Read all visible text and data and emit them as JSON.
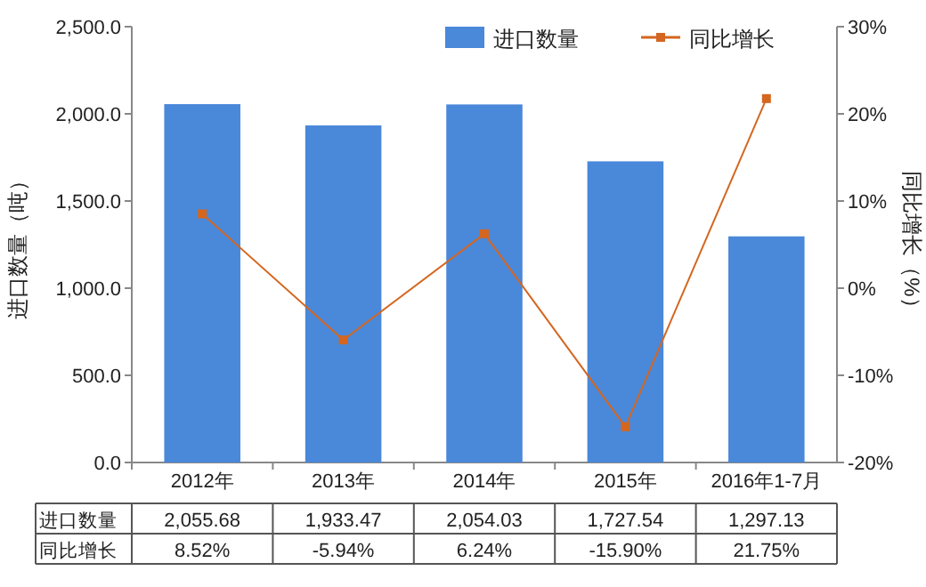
{
  "chart_data": {
    "type": "bar",
    "categories": [
      "2012年",
      "2013年",
      "2014年",
      "2015年",
      "2016年1-7月"
    ],
    "ylabel": "进口数量（吨）",
    "y2label": "同比增长（%）",
    "ylim": [
      0,
      2500
    ],
    "yticks": [
      {
        "value": 0,
        "label": "0.0"
      },
      {
        "value": 500,
        "label": "500.0"
      },
      {
        "value": 1000,
        "label": "1,000.0"
      },
      {
        "value": 1500,
        "label": "1,500.0"
      },
      {
        "value": 2000,
        "label": "2,000.0"
      },
      {
        "value": 2500,
        "label": "2,500.0"
      }
    ],
    "y2lim": [
      -20,
      30
    ],
    "y2ticks": [
      {
        "value": -20,
        "label": "-20%"
      },
      {
        "value": -10,
        "label": "-10%"
      },
      {
        "value": 0,
        "label": "0%"
      },
      {
        "value": 10,
        "label": "10%"
      },
      {
        "value": 20,
        "label": "20%"
      },
      {
        "value": 30,
        "label": "30%"
      }
    ],
    "series": [
      {
        "name": "进口数量",
        "color": "#4a88d9",
        "values": [
          2055.68,
          1933.47,
          2054.03,
          1727.54,
          1297.13
        ],
        "value_labels": [
          "2,055.68",
          "1,933.47",
          "2,054.03",
          "1,727.54",
          "1,297.13"
        ]
      },
      {
        "name": "同比增长",
        "type": "line",
        "axis": "y2",
        "color": "#d4661f",
        "marker": "square",
        "values": [
          8.52,
          -5.94,
          6.24,
          -15.9,
          21.75
        ],
        "value_labels": [
          "8.52%",
          "-5.94%",
          "6.24%",
          "-15.90%",
          "21.75%"
        ]
      }
    ],
    "legend": "top right",
    "grid": false
  }
}
